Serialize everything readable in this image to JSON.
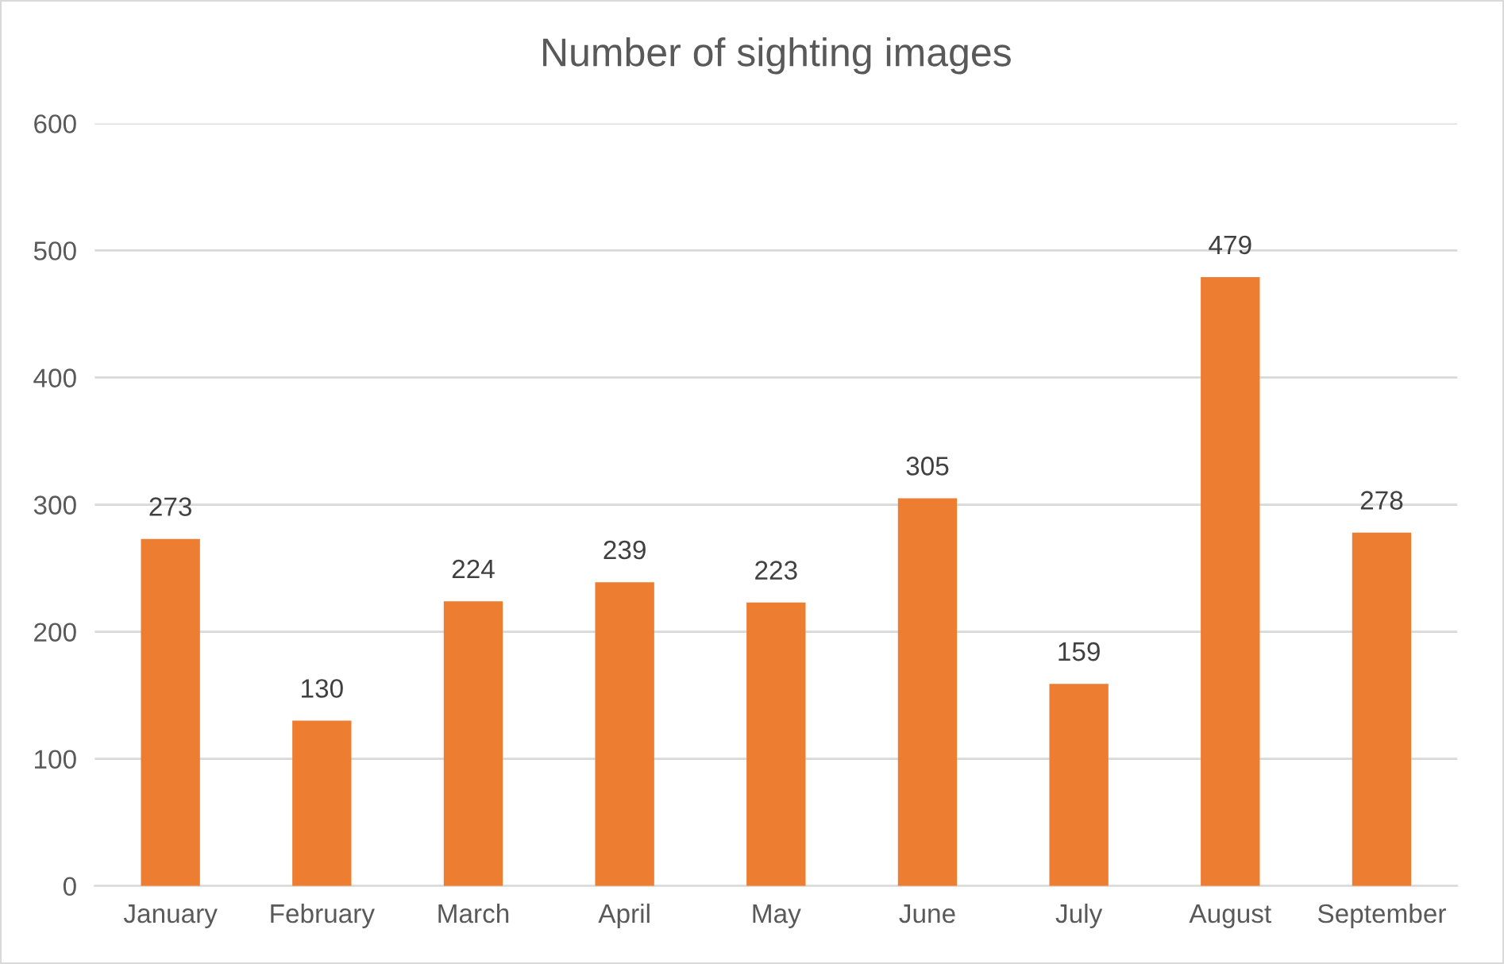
{
  "chart_data": {
    "type": "bar",
    "title": "Number of sighting images",
    "categories": [
      "January",
      "February",
      "March",
      "April",
      "May",
      "June",
      "July",
      "August",
      "September"
    ],
    "values": [
      273,
      130,
      224,
      239,
      223,
      305,
      159,
      479,
      278
    ],
    "color": "#ed7d31",
    "ylim": [
      0,
      600
    ],
    "yticks": [
      0,
      100,
      200,
      300,
      400,
      500,
      600
    ],
    "grid": "y",
    "data_labels": true,
    "legend": false
  }
}
